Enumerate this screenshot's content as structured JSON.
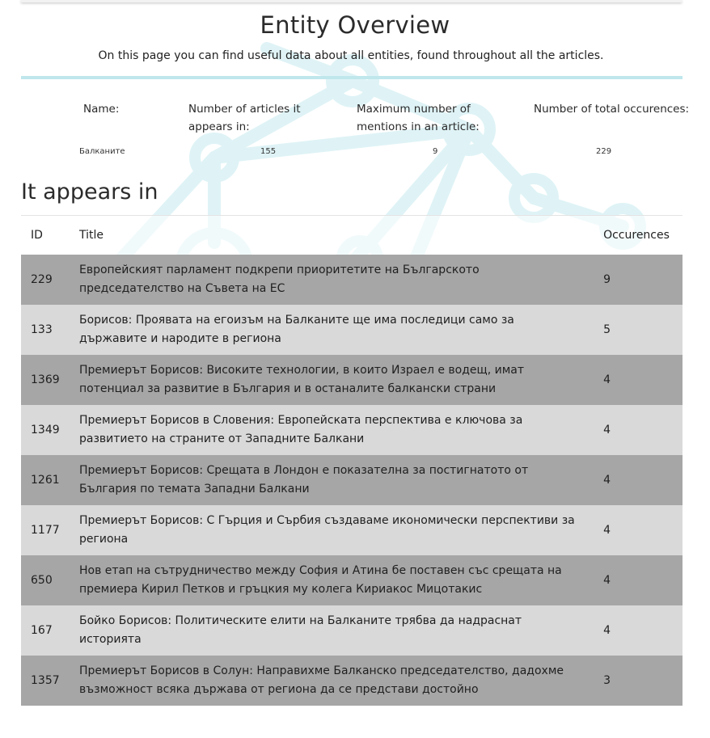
{
  "header": {
    "title": "Entity Overview",
    "subtitle": "On this page you can find useful data about all entities, found throughout all the articles."
  },
  "stats": {
    "name_label": "Name:",
    "articles_label": "Number of articles it appears in:",
    "max_mentions_label": "Maximum number of mentions in an article:",
    "total_label": "Number of total occurences:",
    "name_value": "Балканите",
    "articles_value": "155",
    "max_mentions_value": "9",
    "total_value": "229"
  },
  "section": {
    "heading": "It appears in"
  },
  "table": {
    "columns": {
      "id": "ID",
      "title": "Title",
      "occurences": "Occurences"
    },
    "rows": [
      {
        "id": "229",
        "title": "Европейският парламент подкрепи приоритетите на Българското председателство на Съвета на ЕС",
        "occ": "9"
      },
      {
        "id": "133",
        "title": "Борисов: Проявата на егоизъм на Балканите ще има последици само за държавите и народите в региона",
        "occ": "5"
      },
      {
        "id": "1369",
        "title": "Премиерът Борисов: Високите технологии, в които Израел е водещ, имат потенциал за развитие в България и в останалите балкански страни",
        "occ": "4"
      },
      {
        "id": "1349",
        "title": "Премиерът Борисов в Словения: Европейската перспектива е ключова за развитието на страните от Западните Балкани",
        "occ": "4"
      },
      {
        "id": "1261",
        "title": "Премиерът Борисов: Срещата в Лондон е показателна за постигнатото от България по темата Западни Балкани",
        "occ": "4"
      },
      {
        "id": "1177",
        "title": "Премиерът Борисов: С Гърция и Сърбия създаваме икономически перспективи за региона",
        "occ": "4"
      },
      {
        "id": "650",
        "title": "Нов етап на сътрудничество между София и Атина бе поставен със срещата на премиера Кирил Петков и гръцкия му колега Кириакос Мицотакис",
        "occ": "4"
      },
      {
        "id": "167",
        "title": "Бойко Борисов: Политическите елити на Балканите трябва да надраснат историята",
        "occ": "4"
      },
      {
        "id": "1357",
        "title": "Премиерът Борисов в Солун: Направихме Балканско председателство, дадохме възможност всяка държава от региона да се представи достойно",
        "occ": "3"
      }
    ]
  }
}
